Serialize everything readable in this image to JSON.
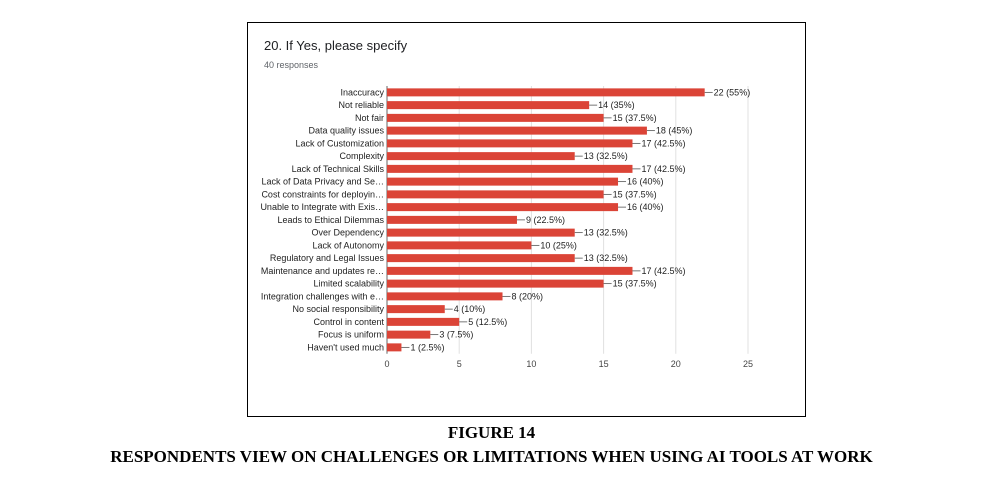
{
  "question_title": "20. If Yes, please specify",
  "responses": "40 responses",
  "figure_number": "FIGURE 14",
  "figure_caption": "RESPONDENTS VIEW ON CHALLENGES OR LIMITATIONS WHEN USING AI TOOLS AT WORK",
  "chart_data": {
    "type": "bar",
    "orientation": "horizontal",
    "title": "20. If Yes, please specify",
    "subtitle": "40 responses",
    "categories": [
      "Inaccuracy",
      "Not reliable",
      "Not fair",
      "Data quality issues",
      "Lack of Customization",
      "Complexity",
      "Lack of Technical Skills",
      "Lack of Data Privacy and Se…",
      "Cost constraints for deployin…",
      "Unable to Integrate with Exis…",
      "Leads to Ethical Dilemmas",
      "Over Dependency",
      "Lack of Autonomy",
      "Regulatory and Legal Issues",
      "Maintenance and updates re…",
      "Limited scalability",
      "Integration challenges with e…",
      "No social responsibility",
      "Control in content",
      "Focus is uniform",
      "Haven't used much"
    ],
    "values": [
      22,
      14,
      15,
      18,
      17,
      13,
      17,
      16,
      15,
      16,
      9,
      13,
      10,
      13,
      17,
      15,
      8,
      4,
      5,
      3,
      1
    ],
    "data_labels": [
      "22 (55%)",
      "14 (35%)",
      "15 (37.5%)",
      "18 (45%)",
      "17 (42.5%)",
      "13 (32.5%)",
      "17 (42.5%)",
      "16 (40%)",
      "15 (37.5%)",
      "16 (40%)",
      "9 (22.5%)",
      "13 (32.5%)",
      "10 (25%)",
      "13 (32.5%)",
      "17 (42.5%)",
      "15 (37.5%)",
      "8 (20%)",
      "4 (10%)",
      "5 (12.5%)",
      "3 (7.5%)",
      "1 (2.5%)"
    ],
    "xticks": [
      0,
      5,
      10,
      15,
      20,
      25
    ],
    "xlim": [
      0,
      25
    ],
    "xlabel": "",
    "ylabel": "",
    "grid": true,
    "bar_color": "#db4437"
  }
}
